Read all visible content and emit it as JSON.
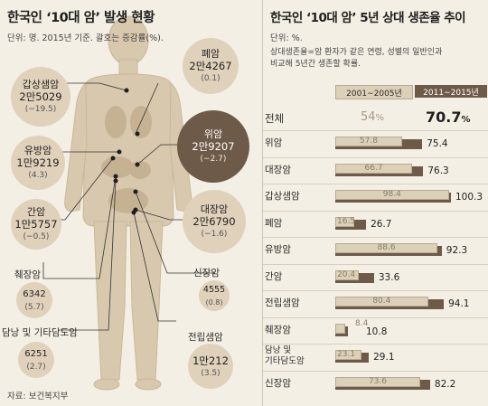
{
  "left": {
    "title": "한국인 ‘10대 암’ 발생 현황",
    "subtitle": "단위: 명. 2015년 기준. 괄호는 증감률(%).",
    "source": "자료: 보건복지부",
    "cancers": {
      "thyroid": {
        "name": "갑상샘암",
        "value": "2만5029",
        "change": "(−19.5)"
      },
      "lung": {
        "name": "폐암",
        "value": "2만4267",
        "change": "(0.1)"
      },
      "stomach": {
        "name": "위암",
        "value": "2만9207",
        "change": "(−2.7)"
      },
      "breast": {
        "name": "유방암",
        "value": "1만9219",
        "change": "(4.3)"
      },
      "liver": {
        "name": "간암",
        "value": "1만5757",
        "change": "(−0.5)"
      },
      "colorectal": {
        "name": "대장암",
        "value": "2만6790",
        "change": "(−1.6)"
      },
      "pancreas": {
        "name": "췌장암",
        "value": "6342",
        "change": "(5.7)"
      },
      "kidney": {
        "name": "신장암",
        "value": "4555",
        "change": "(0.8)"
      },
      "gallbladder": {
        "name": "담낭 및 기타담도암",
        "value": "6251",
        "change": "(2.7)"
      },
      "prostate": {
        "name": "전립샘암",
        "value": "1만212",
        "change": "(3.5)"
      }
    }
  },
  "right": {
    "title": "한국인 ‘10대 암’ 5년 상대 생존율 추이",
    "unit": "단위: %.",
    "note_line1": "상대생존율=암 환자가 같은 연령, 성별의 일반인과",
    "note_line2": "비교해 5년간 생존할 확률.",
    "legend_a": "2001∼2005년",
    "legend_b": "2011∼2015년",
    "total_label": "전체",
    "total_a": "54",
    "total_b": "70.7",
    "total_unit": "%"
  },
  "chart_data": {
    "type": "bar",
    "categories": [
      "위암",
      "대장암",
      "갑상샘암",
      "폐암",
      "유방암",
      "간암",
      "전립샘암",
      "췌장암",
      "담낭 및 기타담도암",
      "신장암"
    ],
    "series": [
      {
        "name": "2001∼2005년",
        "values": [
          57.8,
          66.7,
          98.4,
          16.5,
          88.6,
          20.4,
          80.4,
          8.4,
          23.1,
          73.6
        ]
      },
      {
        "name": "2011∼2015년",
        "values": [
          75.4,
          76.3,
          100.3,
          26.7,
          92.3,
          33.6,
          94.1,
          10.8,
          29.1,
          82.2
        ]
      }
    ],
    "label_a": [
      "57.8",
      "66.7",
      "98.4",
      "16.5",
      "88.6",
      "20.4",
      "80.4",
      "8.4",
      "23.1",
      "73.6"
    ],
    "label_b": [
      "75.4",
      "76.3",
      "100.3",
      "26.7",
      "92.3",
      "33.6",
      "94.1",
      "10.8",
      "29.1",
      "82.2"
    ],
    "xlim": [
      0,
      100.3
    ],
    "colors": {
      "series_a": "#ddd0b9",
      "series_b": "#6e5a48"
    }
  },
  "colors": {
    "background": "#f4efe5",
    "circle_light": "#e0d1bb",
    "circle_dark": "#6e5a48",
    "body": "#d6c6ad"
  }
}
